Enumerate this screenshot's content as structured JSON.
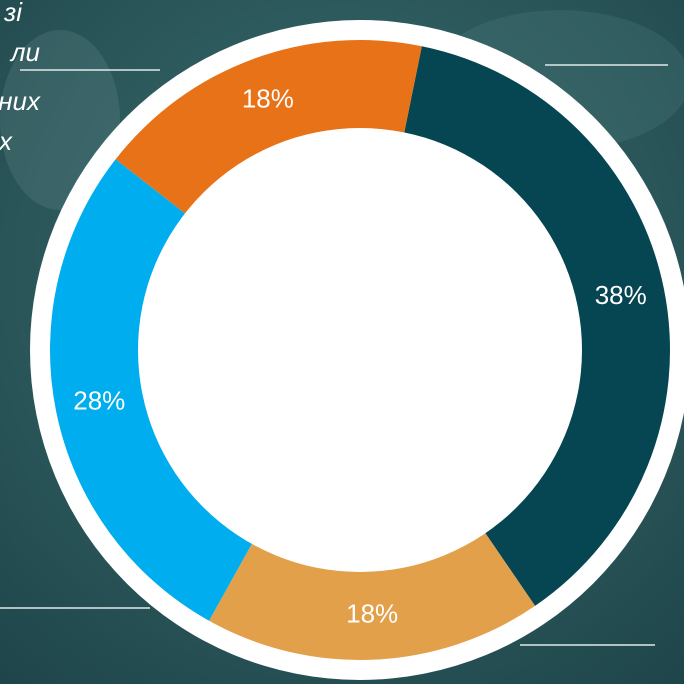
{
  "chart_data": {
    "type": "donut",
    "annotations": [
      "зі",
      "ли",
      "них",
      "х"
    ],
    "values": [
      38,
      18,
      28,
      18
    ],
    "value_labels": [
      "38%",
      "18%",
      "28%",
      "18%"
    ],
    "colors": [
      "#054652",
      "#e3a04a",
      "#00adef",
      "#e87217"
    ]
  }
}
